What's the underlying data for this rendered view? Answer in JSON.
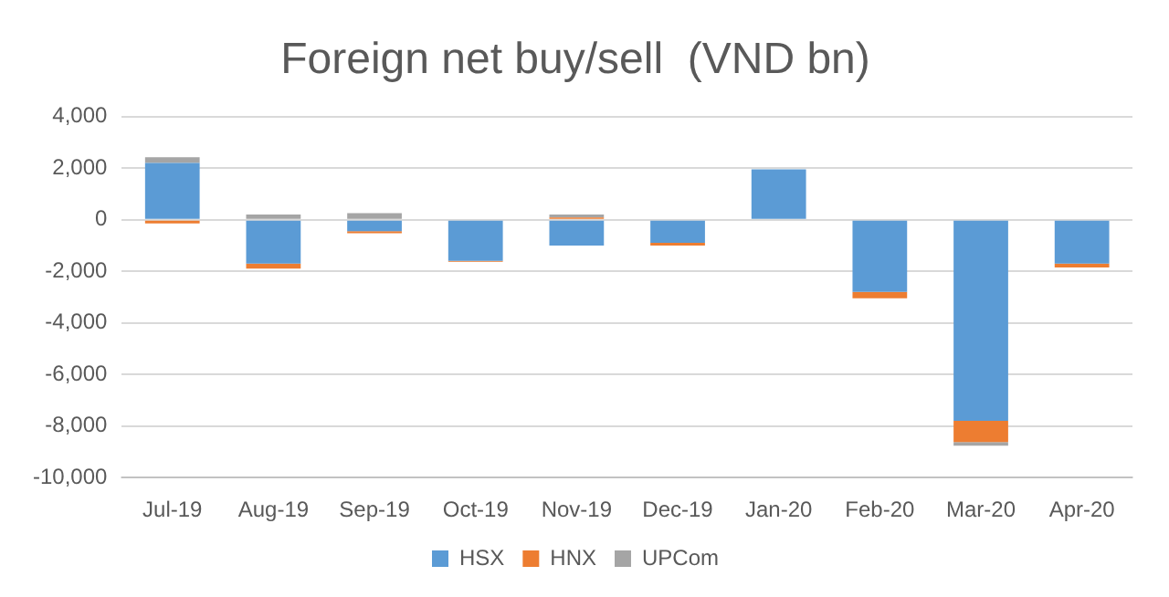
{
  "chart_data": {
    "type": "bar",
    "title": "Foreign net buy/sell  (VND bn)",
    "stacked": true,
    "categories": [
      "Jul-19",
      "Aug-19",
      "Sep-19",
      "Oct-19",
      "Nov-19",
      "Dec-19",
      "Jan-20",
      "Feb-20",
      "Mar-20",
      "Apr-20"
    ],
    "series": [
      {
        "name": "HSX",
        "color": "#5b9bd5",
        "values": [
          2200,
          -1700,
          -450,
          -1600,
          -1000,
          -900,
          1950,
          -2800,
          -7800,
          -1700
        ]
      },
      {
        "name": "HNX",
        "color": "#ed7d31",
        "values": [
          -150,
          -200,
          -80,
          -30,
          80,
          -100,
          null,
          -250,
          -820,
          -150
        ]
      },
      {
        "name": "UPCom",
        "color": "#a5a5a5",
        "values": [
          220,
          200,
          250,
          0,
          120,
          0,
          0,
          null,
          -140,
          null
        ]
      }
    ],
    "ylim": [
      -10000,
      4000
    ],
    "yticks": [
      {
        "value": -10000,
        "label": "-10,000"
      },
      {
        "value": -8000,
        "label": "-8,000"
      },
      {
        "value": -6000,
        "label": "-6,000"
      },
      {
        "value": -4000,
        "label": "-4,000"
      },
      {
        "value": -2000,
        "label": "-2,000"
      },
      0,
      {
        "value": 2000,
        "label": "2,000"
      },
      {
        "value": 4000,
        "label": "4,000"
      }
    ],
    "grid": "y",
    "legend": "bottom"
  }
}
